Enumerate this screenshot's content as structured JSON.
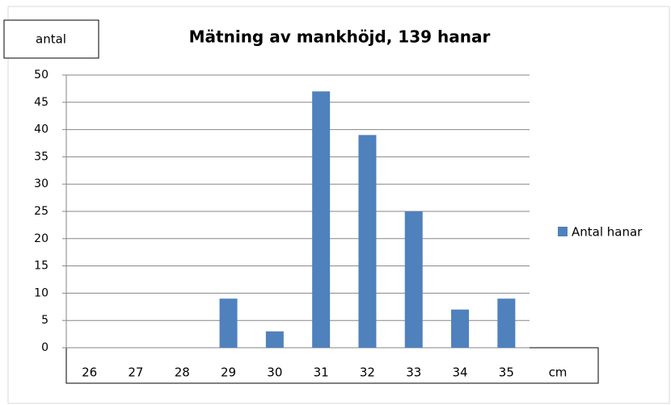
{
  "chart_data": {
    "type": "bar",
    "title": "Mätning av mankhöjd, 139 hanar",
    "y_label": "antal",
    "x_label": "cm",
    "categories": [
      "26",
      "27",
      "28",
      "29",
      "30",
      "31",
      "32",
      "33",
      "34",
      "35"
    ],
    "series": [
      {
        "name": "Antal hanar",
        "color": "#4f81bd",
        "values": [
          0,
          0,
          0,
          9,
          3,
          47,
          39,
          25,
          7,
          9
        ]
      }
    ],
    "ylim": [
      0,
      50
    ],
    "yticks": [
      0,
      5,
      10,
      15,
      20,
      25,
      30,
      35,
      40,
      45,
      50
    ],
    "grid": true,
    "legend": "right"
  }
}
